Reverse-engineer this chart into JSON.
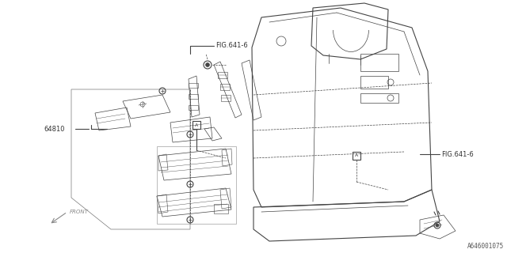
{
  "bg_color": "#ffffff",
  "line_color": "#444444",
  "text_color": "#333333",
  "fig_width": 6.4,
  "fig_height": 3.2,
  "dpi": 100,
  "labels": {
    "fig_ref_top": "FIG.641-6",
    "fig_ref_right": "FIG.641-6",
    "part_number": "64810",
    "callout_a_left": "A",
    "callout_a_right": "A",
    "front_label": "FRONT",
    "diagram_id": "A646001075"
  },
  "font_sizes": {
    "label": 6.0,
    "small": 5.0,
    "diagram_id": 5.5
  }
}
